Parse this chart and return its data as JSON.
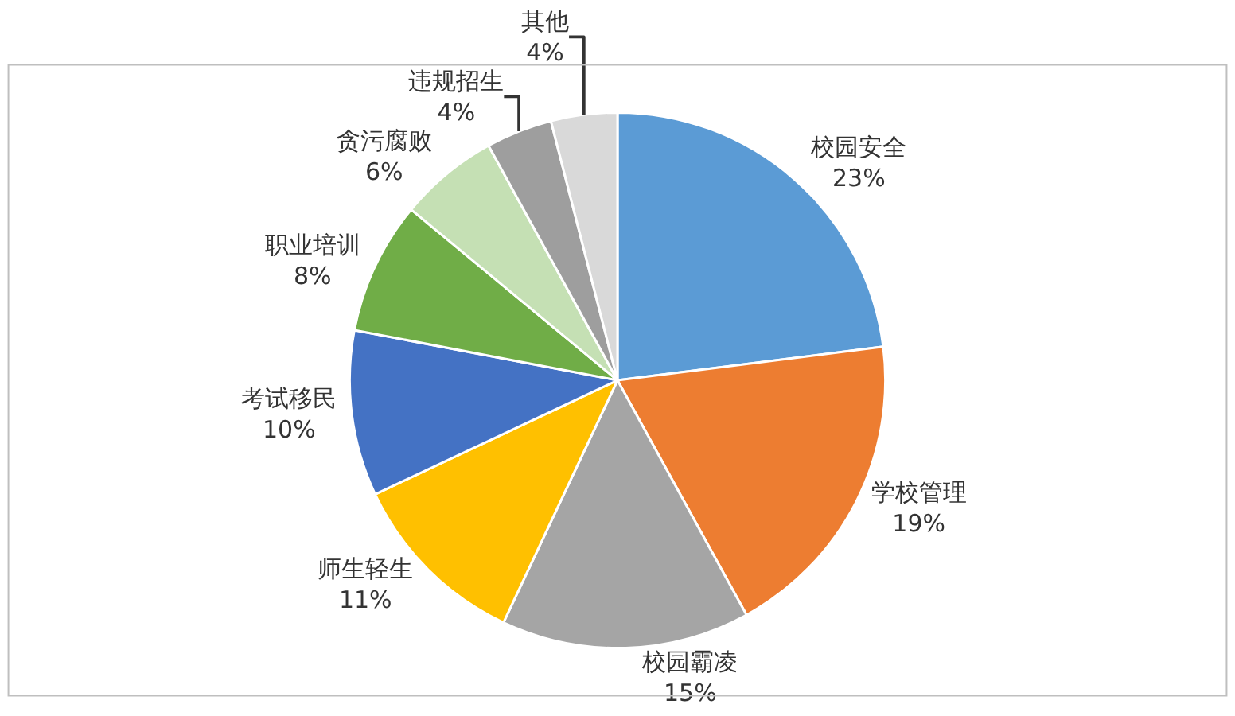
{
  "chart_data": {
    "type": "pie",
    "categories": [
      "校园安全",
      "学校管理",
      "校园霸凌",
      "师生轻生",
      "考试移民",
      "职业培训",
      "贪污腐败",
      "违规招生",
      "其他"
    ],
    "values": [
      23,
      19,
      15,
      11,
      10,
      8,
      6,
      4,
      4
    ],
    "value_labels": [
      "23%",
      "19%",
      "15%",
      "11%",
      "10%",
      "8%",
      "6%",
      "4%",
      "4%"
    ],
    "colors": [
      "#5b9bd5",
      "#ed7d31",
      "#a5a5a5",
      "#ffc000",
      "#4472c4",
      "#70ad47",
      "#c5e0b4",
      "#9e9e9e",
      "#d9d9d9"
    ],
    "legend": false
  }
}
